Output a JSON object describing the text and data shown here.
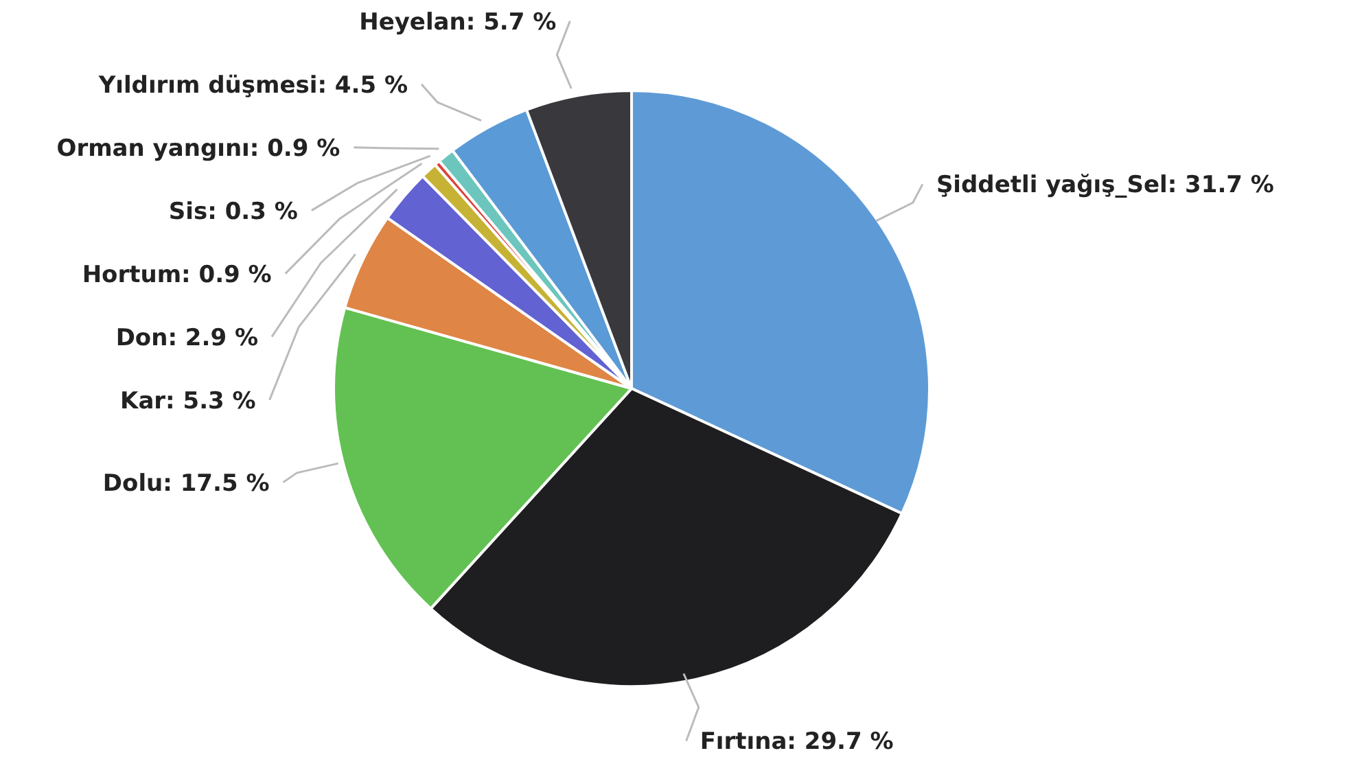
{
  "chart_data": {
    "type": "pie",
    "categories": [
      "Şiddetli yağış_Sel",
      "Fırtına",
      "Dolu",
      "Kar",
      "Don",
      "Hortum",
      "Sis",
      "Orman yangını",
      "Yıldırım düşmesi",
      "Heyelan"
    ],
    "values": [
      31.7,
      29.7,
      17.5,
      5.3,
      2.9,
      0.9,
      0.3,
      0.9,
      4.5,
      5.7
    ],
    "value_labels": [
      "31.7 %",
      "29.7 %",
      "17.5 %",
      "5.3 %",
      "2.9 %",
      "0.9 %",
      "0.3 %",
      "0.9 %",
      "4.5 %",
      "5.7 %"
    ],
    "colors": [
      "#5e9bd6",
      "#1e1e20",
      "#62c152",
      "#df8545",
      "#6262d2",
      "#c6b234",
      "#d9443c",
      "#6cc6bd",
      "#5a9ad6",
      "#38383d"
    ]
  }
}
